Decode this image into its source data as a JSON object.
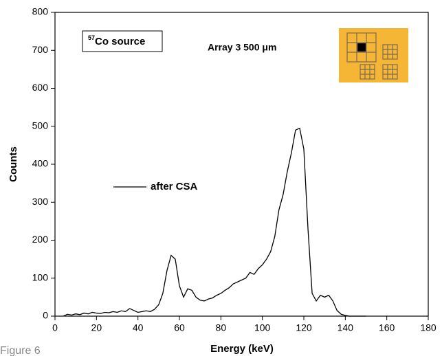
{
  "chart_data": {
    "type": "line",
    "x_label": "Energy (keV)",
    "y_label": "Counts",
    "source_label": {
      "sup": "57",
      "text": "Co source"
    },
    "array_label": "Array 3 500 μm",
    "figure_label": "Figure 6",
    "x": [
      4,
      6,
      8,
      10,
      12,
      14,
      16,
      18,
      20,
      22,
      24,
      26,
      28,
      30,
      32,
      34,
      36,
      38,
      40,
      42,
      44,
      46,
      48,
      50,
      52,
      54,
      56,
      58,
      60,
      62,
      64,
      66,
      68,
      70,
      72,
      74,
      76,
      78,
      80,
      82,
      84,
      86,
      88,
      90,
      92,
      94,
      96,
      98,
      100,
      102,
      104,
      106,
      108,
      110,
      112,
      114,
      116,
      118,
      120,
      122,
      124,
      126,
      128,
      130,
      132,
      134,
      136,
      138,
      140,
      142,
      144,
      146,
      148,
      150
    ],
    "series": [
      {
        "name": "after CSA",
        "color": "#000000",
        "values": [
          0,
          5,
          3,
          6,
          4,
          8,
          6,
          10,
          8,
          7,
          10,
          9,
          12,
          10,
          14,
          12,
          20,
          15,
          10,
          12,
          14,
          12,
          18,
          30,
          60,
          120,
          160,
          150,
          80,
          50,
          72,
          68,
          50,
          42,
          40,
          45,
          48,
          55,
          60,
          68,
          75,
          85,
          90,
          95,
          100,
          115,
          110,
          125,
          135,
          150,
          170,
          210,
          280,
          320,
          380,
          430,
          490,
          495,
          440,
          230,
          60,
          40,
          55,
          50,
          55,
          40,
          15,
          5,
          2,
          0,
          0,
          0,
          0,
          0
        ]
      }
    ],
    "xlim": [
      0,
      180
    ],
    "xticks": [
      0,
      20,
      40,
      60,
      80,
      100,
      120,
      140,
      160,
      180
    ],
    "ylim": [
      0,
      800
    ],
    "yticks": [
      0,
      100,
      200,
      300,
      400,
      500,
      600,
      700,
      800
    ],
    "grid": false
  }
}
